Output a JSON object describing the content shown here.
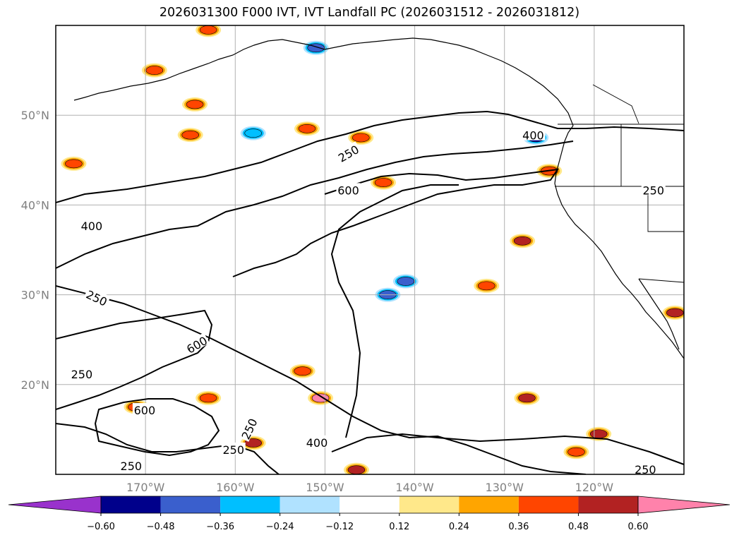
{
  "chart_data": {
    "type": "contour map",
    "title": "2026031300 F000 IVT, IVT Landfall PC (2026031512 - 2026031812)",
    "lon_range": [
      -180,
      -110
    ],
    "lat_range": [
      10,
      60
    ],
    "x_ticks": [
      {
        "lon": -170,
        "label": "170°W"
      },
      {
        "lon": -160,
        "label": "160°W"
      },
      {
        "lon": -150,
        "label": "150°W"
      },
      {
        "lon": -140,
        "label": "140°W"
      },
      {
        "lon": -130,
        "label": "130°W"
      },
      {
        "lon": -120,
        "label": "120°W"
      }
    ],
    "y_ticks": [
      {
        "lat": 50,
        "label": "50°N"
      },
      {
        "lat": 40,
        "label": "40°N"
      },
      {
        "lat": 30,
        "label": "30°N"
      },
      {
        "lat": 20,
        "label": "20°N"
      }
    ],
    "colorbar": {
      "levels": [
        -0.6,
        -0.48,
        -0.36,
        -0.24,
        -0.12,
        0.12,
        0.24,
        0.36,
        0.48,
        0.6
      ],
      "tick_labels": [
        "−0.60",
        "−0.48",
        "−0.36",
        "−0.24",
        "−0.12",
        "0.12",
        "0.24",
        "0.36",
        "0.48",
        "0.60"
      ],
      "colors": [
        "#9932cc",
        "#00008b",
        "#3a5fcd",
        "#00bfff",
        "#b0e2ff",
        "#ffffff",
        "#ffe88a",
        "#ffa500",
        "#ff4500",
        "#b22222",
        "#ff82ab"
      ],
      "extend": "both"
    },
    "ivt_contour_levels": [
      250,
      400,
      600
    ],
    "contour_labels": [
      {
        "text": "250",
        "lon": -147.3,
        "lat": 45.6,
        "angle": -30
      },
      {
        "text": "400",
        "lon": -126.8,
        "lat": 47.6,
        "angle": 0
      },
      {
        "text": "600",
        "lon": -147.4,
        "lat": 41.5,
        "angle": 0
      },
      {
        "text": "250",
        "lon": -113.4,
        "lat": 41.5,
        "angle": 0
      },
      {
        "text": "400",
        "lon": -176.0,
        "lat": 37.5,
        "angle": 0
      },
      {
        "text": "250",
        "lon": -175.5,
        "lat": 29.5,
        "angle": 25
      },
      {
        "text": "600",
        "lon": -164.2,
        "lat": 24.3,
        "angle": -30
      },
      {
        "text": "250",
        "lon": -177.1,
        "lat": 21.0,
        "angle": 0
      },
      {
        "text": "600",
        "lon": -170.1,
        "lat": 17.0,
        "angle": 0
      },
      {
        "text": "250",
        "lon": -158.3,
        "lat": 15.0,
        "angle": -65
      },
      {
        "text": "400",
        "lon": -150.9,
        "lat": 13.4,
        "angle": 0
      },
      {
        "text": "250",
        "lon": -160.2,
        "lat": 12.6,
        "angle": 0
      },
      {
        "text": "250",
        "lon": -171.6,
        "lat": 10.8,
        "angle": 0
      },
      {
        "text": "250",
        "lon": -114.3,
        "lat": 10.4,
        "angle": 0
      }
    ],
    "pc_blobs": [
      {
        "lon": -169.0,
        "lat": 55.0,
        "level": 0.36
      },
      {
        "lon": -163.0,
        "lat": 59.5,
        "level": 0.36
      },
      {
        "lon": -151.0,
        "lat": 57.5,
        "level": -0.48
      },
      {
        "lon": -152.0,
        "lat": 48.5,
        "level": 0.36
      },
      {
        "lon": -178.0,
        "lat": 44.6,
        "level": 0.36
      },
      {
        "lon": -165.0,
        "lat": 47.8,
        "level": 0.36
      },
      {
        "lon": -158.0,
        "lat": 48.0,
        "level": -0.36
      },
      {
        "lon": -164.5,
        "lat": 51.2,
        "level": 0.36
      },
      {
        "lon": -146.0,
        "lat": 47.5,
        "level": 0.36
      },
      {
        "lon": -143.5,
        "lat": 42.5,
        "level": 0.36
      },
      {
        "lon": -126.5,
        "lat": 47.5,
        "level": -0.6
      },
      {
        "lon": -125.0,
        "lat": 43.8,
        "level": 0.36
      },
      {
        "lon": -128.0,
        "lat": 36.0,
        "level": 0.48
      },
      {
        "lon": -143.0,
        "lat": 30.0,
        "level": -0.48
      },
      {
        "lon": -141.0,
        "lat": 31.5,
        "level": -0.48
      },
      {
        "lon": -152.5,
        "lat": 21.5,
        "level": 0.36
      },
      {
        "lon": -150.5,
        "lat": 18.5,
        "level": 0.6
      },
      {
        "lon": -158.0,
        "lat": 13.5,
        "level": 0.48
      },
      {
        "lon": -122.0,
        "lat": 12.5,
        "level": 0.36
      },
      {
        "lon": -119.5,
        "lat": 14.5,
        "level": 0.48
      },
      {
        "lon": -127.5,
        "lat": 18.5,
        "level": 0.48
      },
      {
        "lon": -146.5,
        "lat": 10.5,
        "level": 0.48
      },
      {
        "lon": -111.0,
        "lat": 28.0,
        "level": 0.48
      },
      {
        "lon": -132.0,
        "lat": 31.0,
        "level": 0.36
      },
      {
        "lon": -163.0,
        "lat": 18.5,
        "level": 0.36
      },
      {
        "lon": -171.0,
        "lat": 17.5,
        "level": 0.36
      }
    ]
  }
}
